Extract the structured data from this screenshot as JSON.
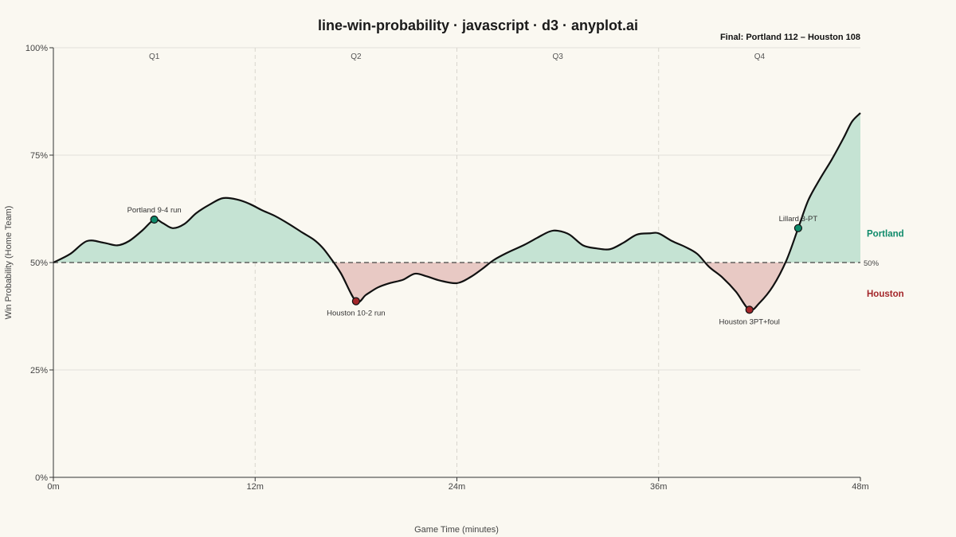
{
  "chart_data": {
    "type": "line",
    "title": "line-win-probability · javascript · d3 · anyplot.ai",
    "subtitle": "Final: Portland 112 – Houston 108",
    "xlabel": "Game Time (minutes)",
    "ylabel": "Win Probability (Home Team)",
    "xlim": [
      0,
      48
    ],
    "ylim": [
      0,
      1
    ],
    "x_ticks": [
      0,
      12,
      24,
      36,
      48
    ],
    "x_tick_labels": [
      "0m",
      "12m",
      "24m",
      "36m",
      "48m"
    ],
    "y_ticks": [
      0,
      0.25,
      0.5,
      0.75,
      1.0
    ],
    "y_tick_labels": [
      "0%",
      "25%",
      "50%",
      "75%",
      "100%"
    ],
    "quarters": [
      {
        "label": "Q1",
        "x": 6
      },
      {
        "label": "Q2",
        "x": 18
      },
      {
        "label": "Q3",
        "x": 30
      },
      {
        "label": "Q4",
        "x": 42
      }
    ],
    "quarter_dividers": [
      12,
      24,
      36
    ],
    "reference_line": {
      "value": 0.5,
      "label": "50%"
    },
    "teams": {
      "home": {
        "name": "Portland",
        "color": "#0E8A6A",
        "fill": "#C5E3D3"
      },
      "away": {
        "name": "Houston",
        "color": "#A3262A",
        "fill": "#E8C9C4"
      }
    },
    "series": [
      {
        "x": [
          0,
          1,
          2,
          3,
          3.8,
          4.5,
          5.3,
          6,
          6.5,
          7.1,
          7.8,
          8.5,
          9.3,
          10.1,
          11,
          11.7,
          12.4,
          13.2,
          14,
          14.8,
          15.5,
          16,
          16.4,
          17.1,
          18,
          18.6,
          19.3,
          20,
          20.8,
          21.5,
          22.2,
          23,
          24,
          24.8,
          25.5,
          26.2,
          27,
          28,
          28.8,
          29.5,
          30,
          30.7,
          31.5,
          32.3,
          33.1,
          33.9,
          34.7,
          35.5,
          36,
          36.8,
          37.6,
          38.3,
          39,
          39.8,
          40.6,
          41.4,
          42,
          42.8,
          43.6,
          44.3,
          44.9,
          45.6,
          46.3,
          47,
          47.5,
          48
        ],
        "values": [
          0.5,
          0.52,
          0.55,
          0.546,
          0.54,
          0.55,
          0.575,
          0.6,
          0.592,
          0.58,
          0.59,
          0.615,
          0.635,
          0.65,
          0.646,
          0.636,
          0.622,
          0.608,
          0.59,
          0.57,
          0.553,
          0.535,
          0.515,
          0.475,
          0.41,
          0.425,
          0.442,
          0.452,
          0.46,
          0.474,
          0.468,
          0.458,
          0.452,
          0.466,
          0.485,
          0.506,
          0.523,
          0.541,
          0.558,
          0.572,
          0.574,
          0.565,
          0.54,
          0.533,
          0.531,
          0.546,
          0.565,
          0.568,
          0.568,
          0.55,
          0.536,
          0.52,
          0.49,
          0.465,
          0.432,
          0.39,
          0.406,
          0.445,
          0.505,
          0.58,
          0.645,
          0.695,
          0.74,
          0.79,
          0.828,
          0.848
        ]
      }
    ],
    "annotations": [
      {
        "x": 6,
        "y": 0.6,
        "text": "Portland 9-4 run",
        "team": "home",
        "position": "above"
      },
      {
        "x": 18,
        "y": 0.41,
        "text": "Houston 10-2 run",
        "team": "away",
        "position": "below"
      },
      {
        "x": 41.4,
        "y": 0.39,
        "text": "Houston 3PT+foul",
        "team": "away",
        "position": "below"
      },
      {
        "x": 44.3,
        "y": 0.58,
        "text": "Lillard 3-PT",
        "team": "home",
        "position": "above"
      }
    ],
    "grid": true,
    "legend": "right"
  }
}
